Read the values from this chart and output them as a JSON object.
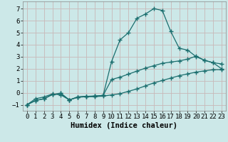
{
  "xlabel": "Humidex (Indice chaleur)",
  "bg_color": "#cce8e8",
  "grid_color": "#c8b8b8",
  "line_color": "#1a6e6e",
  "xlim": [
    -0.5,
    23.5
  ],
  "ylim": [
    -1.5,
    7.6
  ],
  "yticks": [
    -1,
    0,
    1,
    2,
    3,
    4,
    5,
    6,
    7
  ],
  "xticks": [
    0,
    1,
    2,
    3,
    4,
    5,
    6,
    7,
    8,
    9,
    10,
    11,
    12,
    13,
    14,
    15,
    16,
    17,
    18,
    19,
    20,
    21,
    22,
    23
  ],
  "line1_x": [
    0,
    1,
    2,
    3,
    4,
    5,
    6,
    7,
    8,
    9,
    10,
    11,
    12,
    13,
    14,
    15,
    16,
    17,
    18,
    19,
    20,
    21,
    22,
    23
  ],
  "line1_y": [
    -1.0,
    -0.65,
    -0.5,
    -0.15,
    -0.05,
    -0.6,
    -0.35,
    -0.3,
    -0.28,
    -0.22,
    2.6,
    4.4,
    5.0,
    6.2,
    6.55,
    7.0,
    6.85,
    5.1,
    3.7,
    3.55,
    3.0,
    2.7,
    2.5,
    2.0
  ],
  "line2_x": [
    0,
    1,
    2,
    3,
    4,
    5,
    6,
    7,
    8,
    9,
    10,
    11,
    12,
    13,
    14,
    15,
    16,
    17,
    18,
    19,
    20,
    21,
    22,
    23
  ],
  "line2_y": [
    -1.0,
    -0.65,
    -0.5,
    -0.15,
    -0.05,
    -0.6,
    -0.35,
    -0.3,
    -0.28,
    -0.22,
    1.1,
    1.3,
    1.55,
    1.8,
    2.05,
    2.25,
    2.45,
    2.55,
    2.65,
    2.8,
    3.05,
    2.7,
    2.5,
    2.4
  ],
  "line3_x": [
    0,
    1,
    2,
    3,
    4,
    5,
    6,
    7,
    8,
    9,
    10,
    11,
    12,
    13,
    14,
    15,
    16,
    17,
    18,
    19,
    20,
    21,
    22,
    23
  ],
  "line3_y": [
    -1.0,
    -0.5,
    -0.35,
    -0.1,
    -0.18,
    -0.6,
    -0.38,
    -0.33,
    -0.33,
    -0.28,
    -0.18,
    -0.08,
    0.12,
    0.32,
    0.57,
    0.82,
    1.02,
    1.22,
    1.42,
    1.57,
    1.72,
    1.82,
    1.92,
    1.92
  ],
  "tick_fontsize": 6.5,
  "xlabel_fontsize": 7.5
}
